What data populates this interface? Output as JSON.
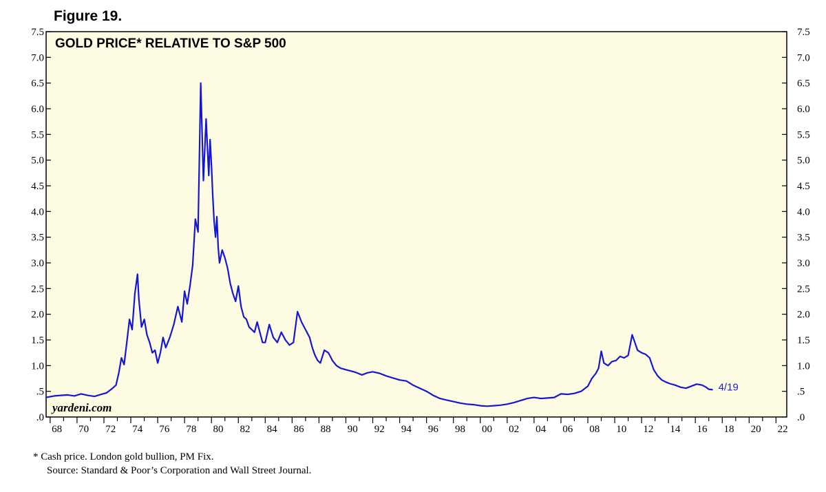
{
  "figure_label": "Figure 19.",
  "watermark": "yardeni.com",
  "footnotes": [
    "*  Cash price. London gold bullion, PM Fix.",
    "Source: Standard & Poor’s Corporation and Wall Street Journal."
  ],
  "colors": {
    "plot_background": "#fdfbe2",
    "line": "#1515d6",
    "frame": "#000000"
  },
  "chart_data": {
    "type": "line",
    "title": "GOLD PRICE* RELATIVE TO S&P 500",
    "xlabel": "",
    "ylabel": "",
    "xlim": [
      1967.7,
      2022.8
    ],
    "ylim": [
      0,
      7.5
    ],
    "grid": false,
    "y_ticks": [
      0,
      0.5,
      1.0,
      1.5,
      2.0,
      2.5,
      3.0,
      3.5,
      4.0,
      4.5,
      5.0,
      5.5,
      6.0,
      6.5,
      7.0,
      7.5
    ],
    "y_tick_labels": [
      ".0",
      ".5",
      "1.0",
      "1.5",
      "2.0",
      "2.5",
      "3.0",
      "3.5",
      "4.0",
      "4.5",
      "5.0",
      "5.5",
      "6.0",
      "6.5",
      "7.0",
      "7.5"
    ],
    "x_ticks": [
      1968,
      1970,
      1972,
      1974,
      1976,
      1978,
      1980,
      1982,
      1984,
      1986,
      1988,
      1990,
      1992,
      1994,
      1996,
      1998,
      2000,
      2002,
      2004,
      2006,
      2008,
      2010,
      2012,
      2014,
      2016,
      2018,
      2020,
      2022
    ],
    "x_tick_labels": [
      "68",
      "70",
      "72",
      "74",
      "76",
      "78",
      "80",
      "82",
      "84",
      "86",
      "88",
      "90",
      "92",
      "94",
      "96",
      "98",
      "00",
      "02",
      "04",
      "06",
      "08",
      "10",
      "12",
      "14",
      "16",
      "18",
      "20",
      "22"
    ],
    "end_label": "4/19",
    "series": [
      {
        "x": [
          1967.7,
          1968.3,
          1968.8,
          1969.3,
          1969.8,
          1970.3,
          1970.8,
          1971.3,
          1971.8,
          1972.2,
          1972.6,
          1972.9,
          1973.1,
          1973.3,
          1973.5,
          1973.7,
          1973.9,
          1974.1,
          1974.3,
          1974.5,
          1974.6,
          1974.8,
          1975.0,
          1975.2,
          1975.4,
          1975.6,
          1975.8,
          1976.0,
          1976.2,
          1976.4,
          1976.6,
          1976.9,
          1977.2,
          1977.5,
          1977.8,
          1978.0,
          1978.2,
          1978.4,
          1978.6,
          1978.8,
          1979.0,
          1979.2,
          1979.4,
          1979.6,
          1979.8,
          1979.9,
          1980.0,
          1980.1,
          1980.2,
          1980.3,
          1980.4,
          1980.5,
          1980.6,
          1980.8,
          1981.0,
          1981.2,
          1981.4,
          1981.6,
          1981.8,
          1982.0,
          1982.2,
          1982.4,
          1982.6,
          1982.8,
          1983.0,
          1983.2,
          1983.4,
          1983.6,
          1983.8,
          1984.0,
          1984.3,
          1984.6,
          1984.9,
          1985.2,
          1985.5,
          1985.8,
          1986.1,
          1986.4,
          1986.7,
          1987.0,
          1987.3,
          1987.5,
          1987.7,
          1987.9,
          1988.1,
          1988.4,
          1988.7,
          1989.0,
          1989.3,
          1989.6,
          1990.0,
          1990.3,
          1990.6,
          1990.9,
          1991.2,
          1991.6,
          1992.0,
          1992.5,
          1993.0,
          1993.5,
          1994.0,
          1994.5,
          1995.0,
          1995.5,
          1996.0,
          1996.5,
          1997.0,
          1997.5,
          1998.0,
          1998.5,
          1999.0,
          1999.5,
          2000.0,
          2000.5,
          2001.0,
          2001.5,
          2002.0,
          2002.5,
          2003.0,
          2003.5,
          2004.0,
          2004.5,
          2005.0,
          2005.5,
          2006.0,
          2006.5,
          2007.0,
          2007.5,
          2008.0,
          2008.3,
          2008.6,
          2008.8,
          2009.0,
          2009.2,
          2009.5,
          2009.8,
          2010.1,
          2010.4,
          2010.7,
          2011.0,
          2011.3,
          2011.5,
          2011.7,
          2012.0,
          2012.3,
          2012.6,
          2012.9,
          2013.2,
          2013.5,
          2013.8,
          2014.1,
          2014.5,
          2014.9,
          2015.3,
          2015.7,
          2016.1,
          2016.5,
          2016.8,
          2017.0,
          2017.3
        ],
        "y": [
          0.38,
          0.41,
          0.42,
          0.43,
          0.41,
          0.45,
          0.42,
          0.4,
          0.44,
          0.47,
          0.55,
          0.62,
          0.85,
          1.15,
          1.02,
          1.45,
          1.9,
          1.7,
          2.4,
          2.78,
          2.3,
          1.75,
          1.9,
          1.6,
          1.45,
          1.25,
          1.3,
          1.05,
          1.25,
          1.55,
          1.35,
          1.55,
          1.8,
          2.15,
          1.85,
          2.45,
          2.2,
          2.55,
          2.95,
          3.85,
          3.6,
          6.5,
          4.6,
          5.8,
          4.7,
          5.4,
          4.9,
          4.3,
          3.8,
          3.5,
          3.9,
          3.3,
          3.0,
          3.25,
          3.1,
          2.9,
          2.6,
          2.4,
          2.25,
          2.55,
          2.15,
          1.95,
          1.9,
          1.75,
          1.7,
          1.65,
          1.85,
          1.65,
          1.45,
          1.45,
          1.8,
          1.55,
          1.45,
          1.65,
          1.5,
          1.4,
          1.45,
          2.05,
          1.85,
          1.7,
          1.55,
          1.35,
          1.2,
          1.1,
          1.05,
          1.3,
          1.25,
          1.1,
          1.0,
          0.95,
          0.92,
          0.9,
          0.88,
          0.85,
          0.82,
          0.86,
          0.88,
          0.85,
          0.8,
          0.76,
          0.72,
          0.7,
          0.62,
          0.56,
          0.5,
          0.42,
          0.36,
          0.33,
          0.3,
          0.27,
          0.25,
          0.24,
          0.22,
          0.21,
          0.22,
          0.23,
          0.25,
          0.28,
          0.32,
          0.36,
          0.38,
          0.36,
          0.37,
          0.38,
          0.45,
          0.44,
          0.46,
          0.5,
          0.6,
          0.75,
          0.85,
          0.95,
          1.28,
          1.05,
          1.0,
          1.08,
          1.1,
          1.18,
          1.15,
          1.2,
          1.6,
          1.45,
          1.3,
          1.25,
          1.22,
          1.15,
          0.92,
          0.8,
          0.72,
          0.68,
          0.65,
          0.62,
          0.58,
          0.56,
          0.6,
          0.64,
          0.62,
          0.58,
          0.54,
          0.53
        ]
      }
    ]
  }
}
